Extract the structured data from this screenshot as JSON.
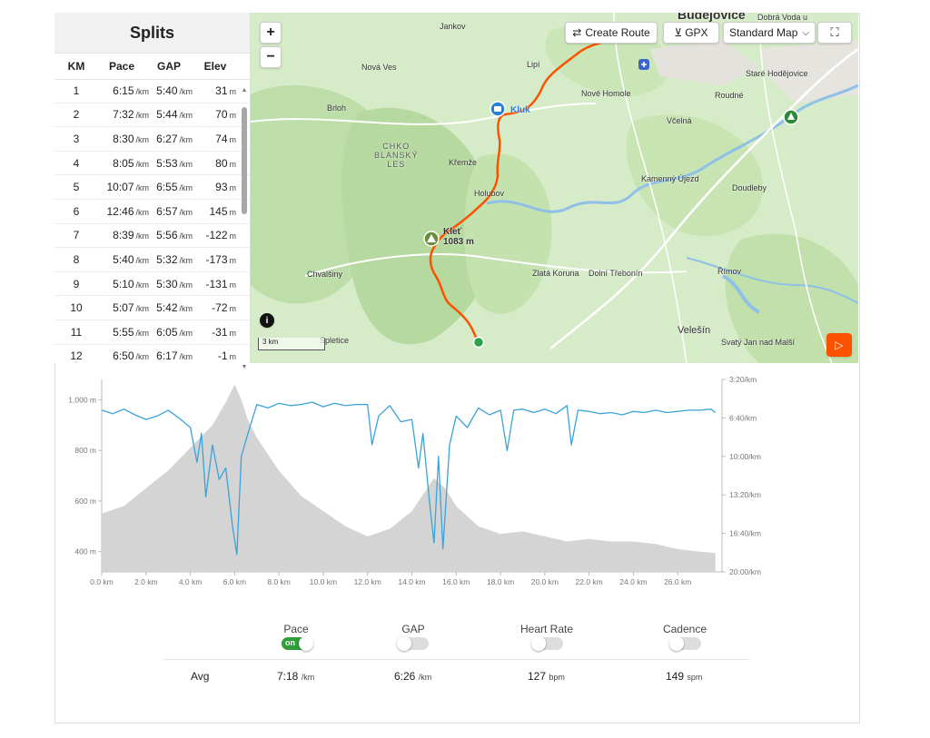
{
  "splits": {
    "title": "Splits",
    "headers": {
      "km": "KM",
      "pace": "Pace",
      "gap": "GAP",
      "elev": "Elev"
    },
    "pace_unit": "/km",
    "elev_unit": "m",
    "rows": [
      {
        "km": "1",
        "pace": "6:15",
        "gap": "5:40",
        "elev": "31"
      },
      {
        "km": "2",
        "pace": "7:32",
        "gap": "5:44",
        "elev": "70"
      },
      {
        "km": "3",
        "pace": "8:30",
        "gap": "6:27",
        "elev": "74"
      },
      {
        "km": "4",
        "pace": "8:05",
        "gap": "5:53",
        "elev": "80"
      },
      {
        "km": "5",
        "pace": "10:07",
        "gap": "6:55",
        "elev": "93"
      },
      {
        "km": "6",
        "pace": "12:46",
        "gap": "6:57",
        "elev": "145"
      },
      {
        "km": "7",
        "pace": "8:39",
        "gap": "5:56",
        "elev": "-122"
      },
      {
        "km": "8",
        "pace": "5:40",
        "gap": "5:32",
        "elev": "-173"
      },
      {
        "km": "9",
        "pace": "5:10",
        "gap": "5:30",
        "elev": "-131"
      },
      {
        "km": "10",
        "pace": "5:07",
        "gap": "5:42",
        "elev": "-72"
      },
      {
        "km": "11",
        "pace": "5:55",
        "gap": "6:05",
        "elev": "-31"
      },
      {
        "km": "12",
        "pace": "6:50",
        "gap": "6:17",
        "elev": "-1"
      }
    ]
  },
  "map": {
    "buttons": {
      "create_route": "Create Route",
      "gpx": "GPX",
      "map_style": "Standard Map",
      "zoom_in": "+",
      "zoom_out": "−"
    },
    "scale": "3 km",
    "labels": {
      "budejovice": "Budějovice",
      "dobra_voda": "Dobrá Voda u",
      "jankov": "Jankov",
      "nova_ves": "Nová Ves",
      "lipi": "Lipí",
      "stare_hodejovice": "Staré Hodějovice",
      "nove_homole": "Nové Homole",
      "roudne": "Roudné",
      "brloh": "Brloh",
      "kluk": "Kluk",
      "vcelna": "Včelná",
      "chko": "CHKO\nBLANSKÝ\nLES",
      "kremze": "Křemže",
      "holubov": "Holubov",
      "kamenny_ujezd": "Kamenný Újezd",
      "doudleby": "Doudleby",
      "klet": "Kleť\n1083 m",
      "chvalsiny": "Chvalšiny",
      "zlata_koruna": "Zlatá Koruna",
      "dolni_trebonin": "Dolní Třebonín",
      "rimov": "Římov",
      "velesin": "Velešín",
      "svaty_jan": "Svatý Jan nad Malší",
      "spletice": "Spletice"
    },
    "colors": {
      "route": "#fc5200",
      "land": "#d2e9c3",
      "forest": "#b8dba2",
      "water": "#8fc0e8"
    }
  },
  "chart_data": {
    "type": "line",
    "x_ticks": [
      "0.0 km",
      "2.0 km",
      "4.0 km",
      "6.0 km",
      "8.0 km",
      "10.0 km",
      "12.0 km",
      "14.0 km",
      "16.0 km",
      "18.0 km",
      "20.0 km",
      "22.0 km",
      "24.0 km",
      "26.0 km"
    ],
    "y_left_ticks": [
      "1,000 m",
      "800 m",
      "600 m",
      "400 m"
    ],
    "y_right_ticks": [
      "3:20/km",
      "6:40/km",
      "10:00/km",
      "13:20/km",
      "16:40/km",
      "20:00/km"
    ],
    "xlim": [
      0,
      28
    ],
    "elev_lim": [
      320,
      1080
    ],
    "pace_lim_min_per_km": [
      3.333,
      20.0
    ],
    "series": [
      {
        "name": "Elevation",
        "unit": "m",
        "color": "#d4d4d4",
        "x": [
          0,
          1,
          2,
          3,
          4,
          5,
          5.6,
          6.0,
          6.3,
          6.6,
          7,
          8,
          9,
          10,
          11,
          12,
          13,
          14,
          15,
          15.5,
          16,
          17,
          18,
          19,
          20,
          21,
          22,
          23,
          24,
          25,
          26,
          27,
          27.7
        ],
        "values": [
          550,
          580,
          650,
          720,
          810,
          900,
          990,
          1060,
          1000,
          920,
          850,
          720,
          620,
          560,
          500,
          460,
          490,
          560,
          690,
          650,
          580,
          500,
          470,
          480,
          460,
          440,
          450,
          440,
          440,
          430,
          410,
          400,
          395
        ]
      },
      {
        "name": "Pace",
        "unit": "/km",
        "color": "#3aa3d9",
        "x": [
          0,
          0.5,
          1,
          1.5,
          2,
          2.5,
          3,
          3.5,
          4,
          4.3,
          4.5,
          4.7,
          5,
          5.3,
          5.6,
          5.9,
          6.1,
          6.3,
          6.6,
          7,
          7.5,
          8,
          8.5,
          9,
          9.5,
          10,
          10.5,
          11,
          11.5,
          12,
          12.2,
          12.5,
          13,
          13.5,
          14,
          14.3,
          14.5,
          14.8,
          15,
          15.2,
          15.4,
          15.7,
          16,
          16.5,
          17,
          17.5,
          18,
          18.3,
          18.6,
          19,
          19.5,
          20,
          20.5,
          21,
          21.2,
          21.5,
          22,
          22.5,
          23,
          23.5,
          24,
          24.5,
          25,
          25.5,
          26,
          26.5,
          27,
          27.5,
          27.7
        ],
        "values": [
          6.0,
          6.3,
          5.9,
          6.4,
          6.8,
          6.5,
          6.0,
          6.7,
          7.5,
          10.5,
          8.0,
          13.5,
          9.0,
          12.0,
          11.0,
          16.0,
          18.5,
          10.0,
          8.0,
          5.5,
          5.8,
          5.4,
          5.6,
          5.5,
          5.3,
          5.7,
          5.4,
          5.6,
          5.5,
          5.5,
          9.0,
          6.5,
          5.6,
          7.0,
          6.8,
          11.0,
          8.0,
          14.0,
          17.5,
          10.0,
          18.0,
          9.0,
          6.5,
          7.5,
          5.8,
          6.4,
          6.0,
          9.5,
          6.0,
          5.9,
          6.2,
          5.9,
          6.3,
          5.6,
          9.0,
          6.0,
          6.1,
          6.3,
          6.2,
          6.4,
          6.1,
          6.2,
          6.0,
          6.2,
          6.1,
          6.0,
          6.0,
          5.9,
          6.2
        ]
      }
    ]
  },
  "controls": {
    "pace": {
      "label": "Pace",
      "state": "on"
    },
    "gap": {
      "label": "GAP",
      "state": "off"
    },
    "heart_rate": {
      "label": "Heart Rate",
      "state": "off"
    },
    "cadence": {
      "label": "Cadence",
      "state": "off"
    }
  },
  "averages": {
    "label": "Avg",
    "pace": {
      "value": "7:18",
      "unit": "/km"
    },
    "gap": {
      "value": "6:26",
      "unit": "/km"
    },
    "heart_rate": {
      "value": "127",
      "unit": "bpm"
    },
    "cadence": {
      "value": "149",
      "unit": "spm"
    }
  }
}
